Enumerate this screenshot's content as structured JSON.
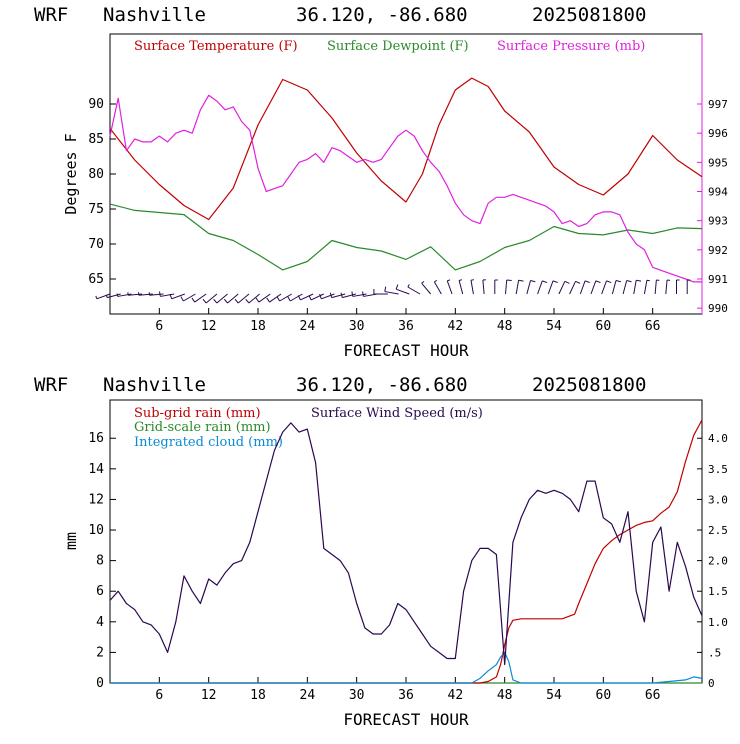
{
  "colors": {
    "temperature": "#c00000",
    "dewpoint": "#2a8a2a",
    "pressure": "#e020e0",
    "subgrid_rain": "#c00000",
    "gridscale_rain": "#2a8a2a",
    "cloud": "#0a8ad8",
    "wind": "#2a0850",
    "barbs": "#2a0850",
    "axes": "#000000"
  },
  "chart_data": [
    {
      "type": "line",
      "title": {
        "model": "WRF",
        "station": "Nashville",
        "coords": "36.120, -86.680",
        "run": "2025081800"
      },
      "xlabel": "FORECAST HOUR",
      "ylabel": "Degrees F",
      "xlim": [
        0,
        72
      ],
      "ylim": [
        60,
        100
      ],
      "y2lim": [
        989.8,
        999.4
      ],
      "x_ticks": [
        "6",
        "12",
        "18",
        "24",
        "30",
        "36",
        "42",
        "48",
        "54",
        "60",
        "66"
      ],
      "y_ticks": [
        "65",
        "70",
        "75",
        "80",
        "85",
        "90"
      ],
      "y2_ticks": [
        "990",
        "991",
        "992",
        "993",
        "994",
        "995",
        "996",
        "997"
      ],
      "legend": [
        "Surface Temperature (F)",
        "Surface Dewpoint (F)",
        "Surface Pressure (mb)"
      ],
      "series": [
        {
          "name": "Surface Temperature (F)",
          "axis": "left",
          "x": [
            0,
            3,
            6,
            9,
            12,
            15,
            18,
            21,
            24,
            27,
            30,
            33,
            36,
            38,
            40,
            42,
            44,
            46,
            48,
            51,
            54,
            57,
            60,
            63,
            66,
            69,
            72
          ],
          "values": [
            86.5,
            82,
            78.5,
            75.5,
            73.5,
            78,
            87,
            93.5,
            92,
            88,
            83,
            79,
            76,
            80,
            87,
            92,
            93.7,
            92.5,
            89,
            86,
            81,
            78.5,
            77,
            80,
            85.5,
            82,
            79.6
          ]
        },
        {
          "name": "Surface Dewpoint (F)",
          "axis": "left",
          "x": [
            0,
            3,
            6,
            9,
            12,
            15,
            18,
            21,
            24,
            27,
            30,
            33,
            36,
            39,
            42,
            45,
            48,
            51,
            54,
            57,
            60,
            63,
            66,
            69,
            72
          ],
          "values": [
            75.7,
            74.8,
            74.5,
            74.2,
            71.5,
            70.5,
            68.5,
            66.3,
            67.5,
            70.5,
            69.5,
            69,
            67.8,
            69.6,
            66.3,
            67.5,
            69.5,
            70.5,
            72.5,
            71.5,
            71.3,
            72,
            71.5,
            72.3,
            72.2
          ]
        },
        {
          "name": "Surface Pressure (mb)",
          "axis": "right",
          "x": [
            0,
            1,
            2,
            3,
            4,
            5,
            6,
            7,
            8,
            9,
            10,
            11,
            12,
            13,
            14,
            15,
            16,
            17,
            18,
            19,
            20,
            21,
            22,
            23,
            24,
            25,
            26,
            27,
            28,
            29,
            30,
            31,
            32,
            33,
            34,
            35,
            36,
            37,
            38,
            39,
            40,
            41,
            42,
            43,
            44,
            45,
            46,
            47,
            48,
            49,
            50,
            51,
            52,
            53,
            54,
            55,
            56,
            57,
            58,
            59,
            60,
            61,
            62,
            63,
            64,
            65,
            66,
            67,
            68,
            69,
            70,
            71,
            72
          ],
          "values": [
            995.9,
            997.2,
            995.4,
            995.8,
            995.7,
            995.7,
            995.9,
            995.7,
            996.0,
            996.1,
            996.0,
            996.8,
            997.3,
            997.1,
            996.8,
            996.9,
            996.4,
            996.1,
            994.8,
            994.0,
            994.1,
            994.2,
            994.6,
            995.0,
            995.1,
            995.3,
            995.0,
            995.5,
            995.4,
            995.2,
            995.0,
            995.1,
            995.0,
            995.1,
            995.5,
            995.9,
            996.1,
            995.9,
            995.4,
            995.0,
            994.7,
            994.2,
            993.6,
            993.2,
            993.0,
            992.9,
            993.6,
            993.8,
            993.8,
            993.9,
            993.8,
            993.7,
            993.6,
            993.5,
            993.3,
            992.9,
            993.0,
            992.8,
            992.9,
            993.2,
            993.3,
            993.3,
            993.2,
            992.6,
            992.2,
            992.0,
            991.4,
            991.3,
            991.2,
            991.1,
            991.0,
            990.9,
            990.9
          ]
        }
      ],
      "wind_barbs": {
        "x": [
          0,
          1.3,
          2.6,
          3.9,
          5.2,
          6.5,
          7.8,
          9.1,
          10.4,
          11.7,
          13,
          14.3,
          15.6,
          16.9,
          18.2,
          19.5,
          20.8,
          22.1,
          23.4,
          24.7,
          26,
          27.3,
          28.6,
          29.9,
          31.2,
          32.5,
          33.8,
          35.1,
          36.4,
          37.7,
          39,
          40.3,
          41.6,
          42.9,
          44.2,
          45.5,
          46.8,
          48.1,
          49.4,
          50.7,
          52,
          53.3,
          54.6,
          55.9,
          57.2,
          58.5,
          59.8,
          61.1,
          62.4,
          63.7,
          65,
          66.3,
          67.6,
          68.9,
          70.2
        ],
        "direction_deg": [
          250,
          255,
          260,
          265,
          265,
          265,
          260,
          250,
          240,
          235,
          230,
          230,
          230,
          230,
          230,
          235,
          235,
          240,
          240,
          245,
          245,
          250,
          255,
          255,
          260,
          260,
          270,
          280,
          290,
          300,
          320,
          330,
          340,
          345,
          350,
          355,
          0,
          5,
          10,
          15,
          20,
          20,
          25,
          25,
          20,
          20,
          20,
          15,
          15,
          10,
          10,
          5,
          5,
          0,
          0
        ],
        "speed_kt": [
          5,
          5,
          5,
          5,
          5,
          5,
          10,
          10,
          10,
          10,
          10,
          10,
          10,
          10,
          10,
          10,
          10,
          10,
          10,
          10,
          10,
          10,
          10,
          10,
          10,
          10,
          10,
          10,
          10,
          5,
          5,
          5,
          5,
          5,
          5,
          5,
          5,
          10,
          10,
          10,
          10,
          10,
          10,
          10,
          10,
          10,
          10,
          10,
          10,
          10,
          5,
          5,
          5,
          5,
          5
        ]
      }
    },
    {
      "type": "line",
      "title": {
        "model": "WRF",
        "station": "Nashville",
        "coords": "36.120, -86.680",
        "run": "2025081800"
      },
      "xlabel": "FORECAST HOUR",
      "ylabel": "mm",
      "xlim": [
        0,
        72
      ],
      "ylim": [
        0,
        18.5
      ],
      "y2lim": [
        0,
        4.625
      ],
      "x_ticks": [
        "6",
        "12",
        "18",
        "24",
        "30",
        "36",
        "42",
        "48",
        "54",
        "60",
        "66"
      ],
      "y_ticks": [
        "0",
        "2",
        "4",
        "6",
        "8",
        "10",
        "12",
        "14",
        "16"
      ],
      "y2_ticks": [
        "0",
        ".5",
        "1.0",
        "1.5",
        "2.0",
        "2.5",
        "3.0",
        "3.5",
        "4.0"
      ],
      "legend": [
        "Sub-grid rain (mm)",
        "Grid-scale rain (mm)",
        "Integrated cloud (mm)",
        "Surface Wind Speed (m/s)"
      ],
      "series": [
        {
          "name": "Sub-grid rain (mm)",
          "axis": "left",
          "x": [
            0,
            45,
            46,
            47,
            47.5,
            48,
            48.5,
            49,
            50,
            55,
            56.5,
            57,
            58,
            59,
            60,
            61,
            62,
            63,
            64,
            65,
            66,
            67,
            68,
            69,
            70,
            71,
            72
          ],
          "values": [
            0,
            0,
            0.1,
            0.4,
            1.2,
            2.5,
            3.6,
            4.1,
            4.2,
            4.2,
            4.5,
            5.2,
            6.5,
            7.8,
            8.8,
            9.3,
            9.7,
            10.0,
            10.3,
            10.5,
            10.6,
            11.1,
            11.5,
            12.5,
            14.5,
            16.2,
            17.2
          ]
        },
        {
          "name": "Grid-scale rain (mm)",
          "axis": "left",
          "x": [
            0,
            72
          ],
          "values": [
            0,
            0
          ]
        },
        {
          "name": "Integrated cloud (mm)",
          "axis": "left",
          "x": [
            0,
            44,
            45,
            46,
            47,
            47.5,
            48,
            48.5,
            49,
            50,
            52,
            54,
            60,
            66,
            68,
            70,
            71,
            72
          ],
          "values": [
            0,
            0,
            0.3,
            0.8,
            1.2,
            1.7,
            2.0,
            1.4,
            0.2,
            0,
            0,
            0,
            0,
            0,
            0.1,
            0.2,
            0.4,
            0.3
          ]
        },
        {
          "name": "Surface Wind Speed (m/s)",
          "axis": "right",
          "x": [
            0,
            1,
            2,
            3,
            4,
            5,
            6,
            7,
            8,
            9,
            10,
            11,
            12,
            13,
            14,
            15,
            16,
            17,
            18,
            19,
            20,
            21,
            22,
            23,
            24,
            25,
            26,
            27,
            28,
            29,
            30,
            31,
            32,
            33,
            34,
            35,
            36,
            37,
            38,
            39,
            40,
            41,
            42,
            43,
            44,
            45,
            46,
            47,
            48,
            49,
            50,
            51,
            52,
            53,
            54,
            55,
            56,
            57,
            58,
            59,
            60,
            61,
            62,
            63,
            64,
            65,
            66,
            67,
            68,
            69,
            70,
            71,
            72
          ],
          "values": [
            1.35,
            1.5,
            1.3,
            1.2,
            1.0,
            0.95,
            0.8,
            0.5,
            1.0,
            1.75,
            1.5,
            1.3,
            1.7,
            1.6,
            1.8,
            1.95,
            2.0,
            2.3,
            2.8,
            3.3,
            3.8,
            4.1,
            4.25,
            4.1,
            4.15,
            3.6,
            2.2,
            2.1,
            2.0,
            1.8,
            1.3,
            0.9,
            0.8,
            0.8,
            0.95,
            1.3,
            1.2,
            1.0,
            0.8,
            0.6,
            0.5,
            0.4,
            0.4,
            1.5,
            2.0,
            2.2,
            2.2,
            2.1,
            0.3,
            2.3,
            2.7,
            3.0,
            3.15,
            3.1,
            3.15,
            3.1,
            3.0,
            2.8,
            3.3,
            3.3,
            2.7,
            2.6,
            2.3,
            2.8,
            1.5,
            1.0,
            2.3,
            2.55,
            1.5,
            2.3,
            1.9,
            1.4,
            1.1
          ]
        }
      ]
    }
  ]
}
